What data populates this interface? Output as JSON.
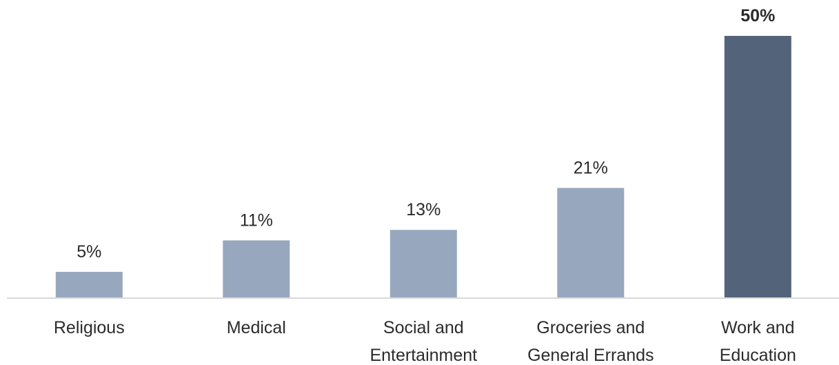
{
  "colors": {
    "bar": "#97a8be",
    "highlight_bar": "#536379",
    "axis_line": "#d9d9d9",
    "text": "#2b2b2b"
  },
  "chart_data": {
    "type": "bar",
    "categories": [
      [
        "Religious"
      ],
      [
        "Medical"
      ],
      [
        "Social and",
        "Entertainment"
      ],
      [
        "Groceries and",
        "General Errands"
      ],
      [
        "Work and",
        "Education"
      ]
    ],
    "values": [
      5,
      11,
      13,
      21,
      50
    ],
    "data_labels": [
      "5%",
      "11%",
      "13%",
      "21%",
      "50%"
    ],
    "highlight_index": 4,
    "ylim": [
      0,
      50
    ],
    "grid": false,
    "legend": "none",
    "title": "",
    "xlabel": "",
    "ylabel": ""
  }
}
